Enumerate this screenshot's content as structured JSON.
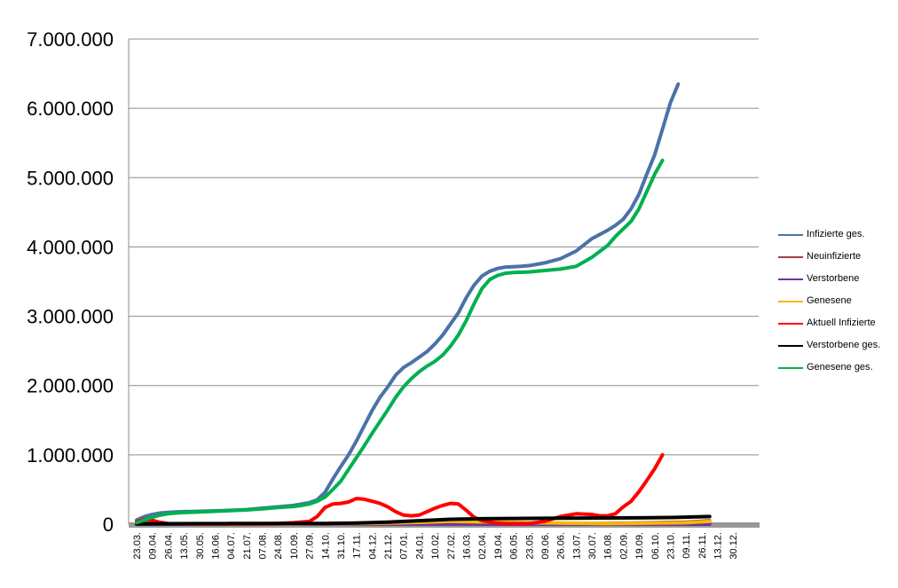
{
  "chart_data": {
    "type": "line",
    "ylim": [
      0,
      7000000
    ],
    "y_tick_values": [
      0,
      1000000,
      2000000,
      3000000,
      4000000,
      5000000,
      6000000,
      7000000
    ],
    "y_tick_labels": [
      "0",
      "1.000.000",
      "2.000.000",
      "3.000.000",
      "4.000.000",
      "5.000.000",
      "6.000.000",
      "7.000.000"
    ],
    "x_tick_labels": [
      "23.03.",
      "09.04.",
      "26.04.",
      "13.05.",
      "30.05.",
      "16.06.",
      "04.07.",
      "21.07.",
      "07.08.",
      "24.08.",
      "10.09.",
      "27.09.",
      "14.10.",
      "31.10.",
      "17.11.",
      "04.12.",
      "21.12.",
      "07.01.",
      "24.01.",
      "10.02.",
      "27.02.",
      "16.03.",
      "02.04.",
      "19.04.",
      "06.05.",
      "23.05.",
      "09.06.",
      "26.06.",
      "13.07.",
      "30.07.",
      "16.08.",
      "02.09.",
      "19.09.",
      "06.10.",
      "23.10.",
      "09.11.",
      "26.11.",
      "13.12.",
      "30.12."
    ],
    "grid": true,
    "legend_position": "right",
    "series": [
      {
        "name": "Infizierte ges.",
        "color": "#4A72A8",
        "x": [
          0,
          0.5,
          1,
          1.5,
          2,
          2.5,
          3,
          3.5,
          4,
          5,
          6,
          7,
          8,
          9,
          10,
          10.5,
          11,
          11.5,
          12,
          12.5,
          13,
          13.5,
          14,
          14.5,
          15,
          15.5,
          16,
          16.5,
          17,
          17.5,
          18,
          18.5,
          19,
          19.5,
          20,
          20.5,
          21,
          21.5,
          22,
          22.5,
          23,
          23.5,
          24,
          24.5,
          25,
          25.5,
          26,
          27,
          28,
          29,
          30,
          30.5,
          31,
          31.5,
          32,
          32.5,
          33,
          33.5,
          34,
          34.5,
          35,
          35.5,
          36,
          36.5,
          37
        ],
        "values": [
          60000,
          110000,
          140000,
          160000,
          170000,
          175000,
          180000,
          183000,
          186000,
          192000,
          200000,
          210000,
          230000,
          250000,
          270000,
          290000,
          310000,
          350000,
          460000,
          650000,
          830000,
          1000000,
          1200000,
          1420000,
          1640000,
          1830000,
          1980000,
          2150000,
          2260000,
          2330000,
          2410000,
          2490000,
          2600000,
          2730000,
          2890000,
          3050000,
          3270000,
          3450000,
          3580000,
          3650000,
          3690000,
          3710000,
          3715000,
          3720000,
          3730000,
          3750000,
          3770000,
          3830000,
          3940000,
          4120000,
          4240000,
          4310000,
          4400000,
          4550000,
          4760000,
          5050000,
          5330000,
          5700000,
          6080000,
          6350000,
          null,
          null,
          null,
          null,
          null
        ]
      },
      {
        "name": "Neuinfizierte",
        "color": "#A0403C",
        "x": [
          0,
          0.5,
          1,
          1.5,
          2,
          3,
          5,
          10,
          15,
          20,
          25,
          30,
          35,
          36.5
        ],
        "values": [
          15000,
          20000,
          15000,
          8000,
          4000,
          2000,
          1000,
          3000,
          15000,
          8000,
          4000,
          10000,
          30000,
          50000
        ]
      },
      {
        "name": "Verstorbene",
        "color": "#7030A0",
        "x": [
          0,
          5,
          10,
          15,
          20,
          25,
          30,
          35,
          36.5
        ],
        "values": [
          300,
          200,
          200,
          500,
          700,
          300,
          100,
          200,
          400
        ]
      },
      {
        "name": "Genesene",
        "color": "#F5B800",
        "x": [
          0,
          2,
          5,
          10,
          15,
          18,
          20,
          25,
          30,
          35,
          36.5
        ],
        "values": [
          5000,
          8000,
          2000,
          2000,
          12000,
          25000,
          40000,
          20000,
          8000,
          20000,
          40000
        ]
      },
      {
        "name": "Aktuell Infizierte",
        "color": "#FF0000",
        "x": [
          0,
          0.5,
          1,
          1.5,
          2,
          3,
          4,
          5,
          6,
          7,
          8,
          9,
          10,
          11,
          11.5,
          12,
          12.5,
          13,
          13.5,
          14,
          14.5,
          15,
          15.5,
          16,
          16.5,
          17,
          17.5,
          18,
          18.5,
          19,
          19.5,
          20,
          20.5,
          21,
          21.5,
          22,
          22.5,
          23,
          23.5,
          24,
          25,
          26,
          27,
          28,
          29,
          29.5,
          30,
          30.5,
          31,
          31.5,
          32,
          32.5,
          33,
          33.5,
          34,
          34.5,
          35,
          35.5,
          36,
          36.5
        ],
        "values": [
          40000,
          70000,
          55000,
          25000,
          8000,
          3000,
          1500,
          1500,
          2000,
          2500,
          5000,
          10000,
          20000,
          40000,
          110000,
          240000,
          290000,
          300000,
          320000,
          370000,
          360000,
          330000,
          300000,
          250000,
          180000,
          130000,
          120000,
          130000,
          180000,
          230000,
          270000,
          300000,
          290000,
          200000,
          100000,
          50000,
          30000,
          15000,
          10000,
          8000,
          10000,
          40000,
          110000,
          150000,
          140000,
          120000,
          120000,
          150000,
          250000,
          330000,
          470000,
          630000,
          800000,
          1000000,
          null,
          null,
          null,
          null,
          null,
          null
        ]
      },
      {
        "name": "Verstorbene ges.",
        "color": "#000000",
        "x": [
          0,
          2,
          4,
          6,
          8,
          10,
          12,
          14,
          16,
          18,
          20,
          22,
          24,
          26,
          28,
          30,
          32,
          34,
          36.5
        ],
        "values": [
          2000,
          6000,
          8000,
          9000,
          9300,
          9600,
          10500,
          15000,
          30000,
          50000,
          70000,
          78000,
          82000,
          85000,
          87000,
          89000,
          91000,
          96000,
          110000
        ]
      },
      {
        "name": "Genesene ges.",
        "color": "#00B050",
        "x": [
          0,
          0.5,
          1,
          1.5,
          2,
          2.5,
          3,
          3.5,
          4,
          5,
          6,
          7,
          8,
          9,
          10,
          10.5,
          11,
          11.5,
          12,
          12.5,
          13,
          13.5,
          14,
          14.5,
          15,
          15.5,
          16,
          16.5,
          17,
          17.5,
          18,
          18.5,
          19,
          19.5,
          20,
          20.5,
          21,
          21.5,
          22,
          22.5,
          23,
          23.5,
          24,
          24.5,
          25,
          26,
          27,
          28,
          29,
          30,
          30.5,
          31,
          31.5,
          32,
          32.5,
          33,
          33.5,
          34,
          34.5,
          35,
          35.5,
          36,
          36.5,
          37
        ],
        "values": [
          20000,
          60000,
          100000,
          130000,
          150000,
          160000,
          168000,
          172000,
          176000,
          185000,
          195000,
          205000,
          220000,
          240000,
          255000,
          270000,
          290000,
          330000,
          390000,
          500000,
          620000,
          790000,
          960000,
          1130000,
          1310000,
          1480000,
          1650000,
          1830000,
          1980000,
          2100000,
          2200000,
          2280000,
          2350000,
          2440000,
          2570000,
          2730000,
          2940000,
          3180000,
          3400000,
          3530000,
          3590000,
          3620000,
          3630000,
          3635000,
          3640000,
          3660000,
          3680000,
          3720000,
          3850000,
          4020000,
          4150000,
          4260000,
          4370000,
          4550000,
          4800000,
          5050000,
          5250000,
          null,
          null,
          null,
          null,
          null,
          null,
          null
        ]
      }
    ]
  }
}
